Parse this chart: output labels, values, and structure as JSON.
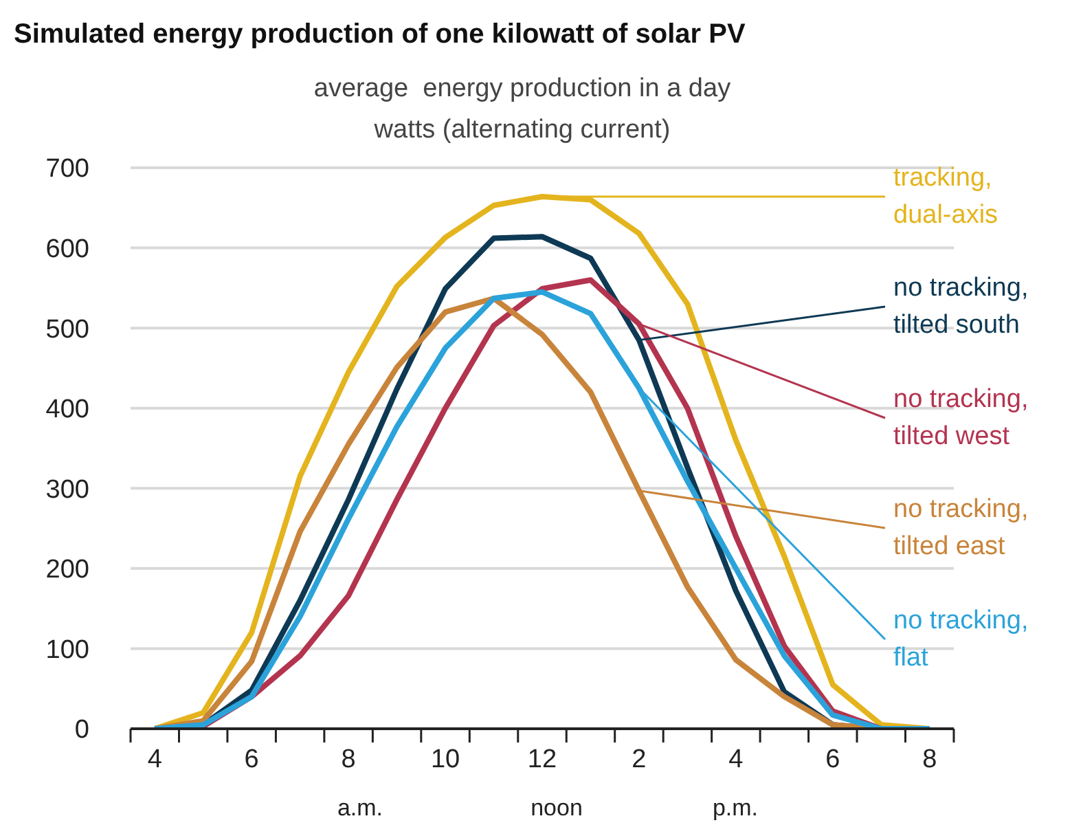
{
  "chart_data": {
    "type": "line",
    "title": "Simulated energy production of one kilowatt of solar PV",
    "subtitle": "average  energy production in a day\nwatts (alternating current)",
    "categories": [
      "4",
      null,
      "6",
      null,
      "8",
      null,
      "10",
      null,
      "12",
      null,
      "2",
      null,
      "4",
      null,
      "6",
      null,
      "8"
    ],
    "series": [
      {
        "color": "#e4b41e",
        "values": [
          0,
          20,
          120,
          315,
          445,
          552,
          613,
          653,
          664,
          660,
          618,
          530,
          360,
          215,
          55,
          5,
          0
        ]
      },
      {
        "color": "#0e3954",
        "values": [
          0,
          5,
          48,
          160,
          286,
          424,
          549,
          612,
          614,
          587,
          485,
          326,
          172,
          46,
          5,
          0,
          0
        ]
      },
      {
        "color": "#b3344f",
        "values": [
          0,
          3,
          40,
          91,
          166,
          286,
          400,
          503,
          549,
          560,
          505,
          400,
          240,
          103,
          22,
          0,
          0
        ]
      },
      {
        "color": "#c8843a",
        "values": [
          0,
          10,
          84,
          246,
          355,
          451,
          520,
          537,
          492,
          420,
          297,
          177,
          86,
          40,
          5,
          0,
          0
        ]
      },
      {
        "color": "#2ba3da",
        "values": [
          0,
          5,
          40,
          140,
          262,
          377,
          475,
          537,
          545,
          518,
          425,
          309,
          200,
          91,
          17,
          0,
          0
        ]
      }
    ],
    "annotations": [
      {
        "text": "tracking,\ndual-axis",
        "x": "12",
        "y": 664
      },
      {
        "text": "no tracking,\ntilted south",
        "x": "2",
        "y": 485
      },
      {
        "text": "no tracking,\ntilted west",
        "x": "2",
        "y": 505
      },
      {
        "text": "no tracking,\ntilted east",
        "x": "2",
        "y": 297
      },
      {
        "text": "no tracking,\nflat",
        "x": "2",
        "y": 425
      },
      "a.m.",
      "noon",
      "p.m."
    ],
    "ylim": [
      0,
      700
    ],
    "yticks": [
      0,
      100,
      200,
      300,
      400,
      500,
      600,
      700
    ],
    "grid": "y",
    "marker": "none",
    "line_style": "solid"
  }
}
